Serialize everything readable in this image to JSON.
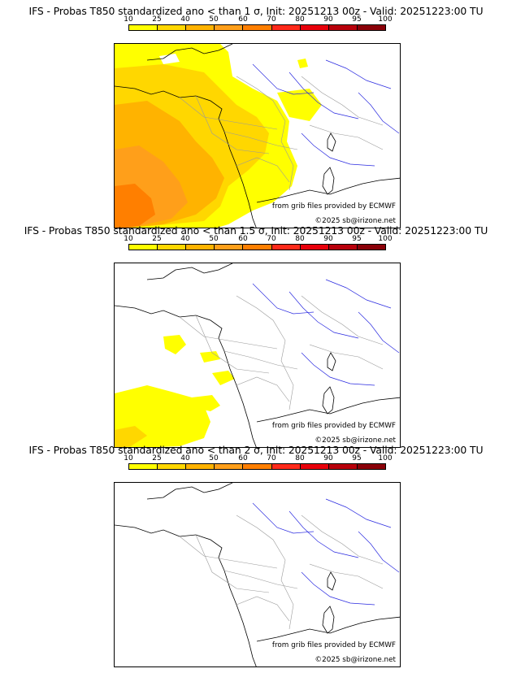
{
  "legend": {
    "labels": [
      "10",
      "25",
      "40",
      "50",
      "60",
      "70",
      "80",
      "90",
      "95",
      "100"
    ],
    "colors": [
      "#ffff00",
      "#ffd700",
      "#ffb300",
      "#ff9f1a",
      "#ff7f00",
      "#ff2a1a",
      "#e8000b",
      "#b8000b",
      "#8a0008"
    ]
  },
  "panels": [
    {
      "title": "IFS - Probas T850  standardized ano < than 1 σ, Init: 20251213 00z - Valid: 20251223:00 TU",
      "credit_grib": "from grib files provided by ECMWF",
      "credit_copy": "©2025 sb@irizone.net",
      "coverage": "high"
    },
    {
      "title": "IFS - Probas T850  standardized ano < than 1.5 σ, Init: 20251213 00z - Valid: 20251223:00 TU",
      "credit_grib": "from grib files provided by ECMWF",
      "credit_copy": "©2025 sb@irizone.net",
      "coverage": "medium"
    },
    {
      "title": "IFS - Probas T850  standardized ano < than 2 σ, Init: 20251213 00z - Valid: 20251223:00 TU",
      "credit_grib": "from grib files provided by ECMWF",
      "credit_copy": "©2025 sb@irizone.net",
      "coverage": "none"
    }
  ]
}
